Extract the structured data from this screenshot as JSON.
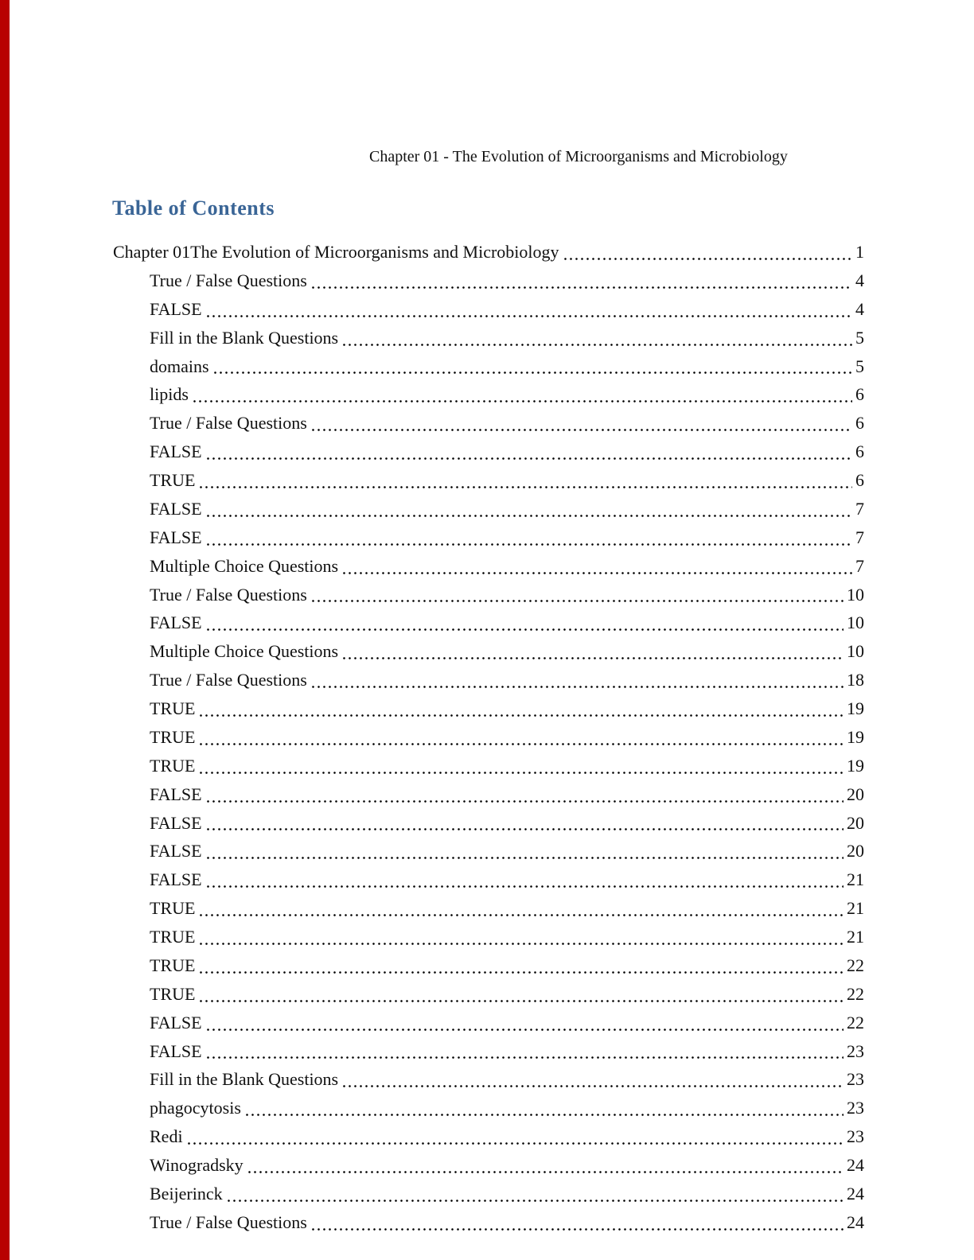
{
  "page": {
    "header": "Chapter 01 - The Evolution of Microorganisms and Microbiology",
    "toc_title": "Table of Contents",
    "title_color": "#3a6596",
    "stripe_color": "#b80000",
    "text_color": "#111111"
  },
  "toc": {
    "entries": [
      {
        "label": "Chapter 01The Evolution of Microorganisms and Microbiology",
        "page": "1",
        "level": 1
      },
      {
        "label": "True / False Questions",
        "page": "4",
        "level": 2
      },
      {
        "label": "FALSE",
        "page": "4",
        "level": 2
      },
      {
        "label": "Fill in the Blank Questions",
        "page": "5",
        "level": 2
      },
      {
        "label": "domains",
        "page": "5",
        "level": 2
      },
      {
        "label": "lipids",
        "page": "6",
        "level": 2
      },
      {
        "label": "True / False Questions",
        "page": "6",
        "level": 2
      },
      {
        "label": "FALSE",
        "page": "6",
        "level": 2
      },
      {
        "label": "TRUE",
        "page": "6",
        "level": 2
      },
      {
        "label": "FALSE",
        "page": "7",
        "level": 2
      },
      {
        "label": "FALSE",
        "page": "7",
        "level": 2
      },
      {
        "label": "Multiple Choice Questions",
        "page": "7",
        "level": 2
      },
      {
        "label": "True / False Questions",
        "page": "10",
        "level": 2
      },
      {
        "label": "FALSE",
        "page": "10",
        "level": 2
      },
      {
        "label": "Multiple Choice Questions",
        "page": "10",
        "level": 2
      },
      {
        "label": "True / False Questions",
        "page": "18",
        "level": 2
      },
      {
        "label": "TRUE",
        "page": "19",
        "level": 2
      },
      {
        "label": "TRUE",
        "page": "19",
        "level": 2
      },
      {
        "label": "TRUE",
        "page": "19",
        "level": 2
      },
      {
        "label": "FALSE",
        "page": "20",
        "level": 2
      },
      {
        "label": "FALSE",
        "page": "20",
        "level": 2
      },
      {
        "label": "FALSE",
        "page": "20",
        "level": 2
      },
      {
        "label": "FALSE",
        "page": "21",
        "level": 2
      },
      {
        "label": "TRUE",
        "page": "21",
        "level": 2
      },
      {
        "label": "TRUE",
        "page": "21",
        "level": 2
      },
      {
        "label": "TRUE",
        "page": "22",
        "level": 2
      },
      {
        "label": "TRUE",
        "page": "22",
        "level": 2
      },
      {
        "label": "FALSE",
        "page": "22",
        "level": 2
      },
      {
        "label": "FALSE",
        "page": "23",
        "level": 2
      },
      {
        "label": "Fill in the Blank Questions",
        "page": "23",
        "level": 2
      },
      {
        "label": "phagocytosis",
        "page": "23",
        "level": 2
      },
      {
        "label": "Redi",
        "page": "23",
        "level": 2
      },
      {
        "label": "Winogradsky",
        "page": "24",
        "level": 2
      },
      {
        "label": "Beijerinck",
        "page": "24",
        "level": 2
      },
      {
        "label": "True / False Questions",
        "page": "24",
        "level": 2
      }
    ]
  }
}
